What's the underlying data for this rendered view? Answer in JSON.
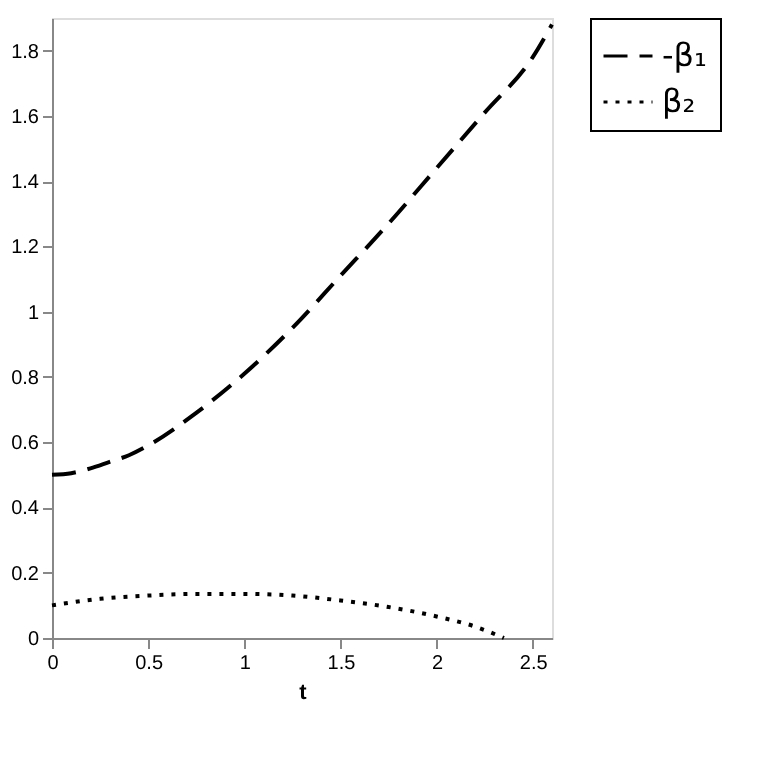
{
  "chart_data": {
    "type": "line",
    "xlabel": "t",
    "xlim": [
      0,
      2.6
    ],
    "ylim": [
      0,
      1.9
    ],
    "xticks": [
      0,
      0.5,
      1,
      1.5,
      2,
      2.5
    ],
    "yticks": [
      0,
      0.2,
      0.4,
      0.6,
      0.8,
      1,
      1.2,
      1.4,
      1.6,
      1.8
    ],
    "grid": false,
    "legend": "right",
    "series": [
      {
        "name": "-β₁",
        "color": "#000000",
        "line_style": "dashed",
        "x": [
          0,
          0.1,
          0.2,
          0.3,
          0.4,
          0.5,
          0.75,
          1,
          1.25,
          1.5,
          1.75,
          2,
          2.25,
          2.5,
          2.6
        ],
        "values": [
          0.5,
          0.505,
          0.52,
          0.54,
          0.56,
          0.59,
          0.69,
          0.81,
          0.95,
          1.11,
          1.27,
          1.44,
          1.61,
          1.78,
          1.88
        ]
      },
      {
        "name": "β₂",
        "color": "#000000",
        "line_style": "dotted",
        "x": [
          0,
          0.25,
          0.5,
          0.75,
          1,
          1.25,
          1.5,
          1.75,
          2,
          2.2,
          2.35
        ],
        "values": [
          0.1,
          0.12,
          0.13,
          0.135,
          0.135,
          0.13,
          0.115,
          0.095,
          0.066,
          0.035,
          0
        ]
      }
    ]
  }
}
